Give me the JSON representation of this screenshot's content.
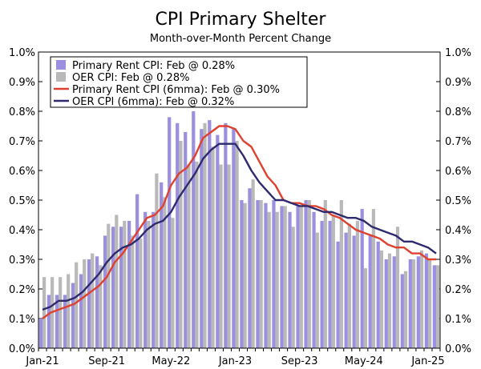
{
  "chart_data": {
    "type": "bar+line",
    "title": "CPI Primary Shelter",
    "subtitle": "Month-over-Month Percent Change",
    "xlabel": "",
    "ylabel": "",
    "ylim": [
      0.0,
      1.0
    ],
    "yticks": [
      "0.0%",
      "0.1%",
      "0.2%",
      "0.3%",
      "0.4%",
      "0.5%",
      "0.6%",
      "0.7%",
      "0.8%",
      "0.9%",
      "1.0%"
    ],
    "x_tick_labels": [
      "Jan-21",
      "Sep-21",
      "May-22",
      "Jan-23",
      "Sep-23",
      "May-24",
      "Jan-25"
    ],
    "grid": false,
    "legend_position": "top-left",
    "categories": [
      "2021-01",
      "2021-02",
      "2021-03",
      "2021-04",
      "2021-05",
      "2021-06",
      "2021-07",
      "2021-08",
      "2021-09",
      "2021-10",
      "2021-11",
      "2021-12",
      "2022-01",
      "2022-02",
      "2022-03",
      "2022-04",
      "2022-05",
      "2022-06",
      "2022-07",
      "2022-08",
      "2022-09",
      "2022-10",
      "2022-11",
      "2022-12",
      "2023-01",
      "2023-02",
      "2023-03",
      "2023-04",
      "2023-05",
      "2023-06",
      "2023-07",
      "2023-08",
      "2023-09",
      "2023-10",
      "2023-11",
      "2023-12",
      "2024-01",
      "2024-02",
      "2024-03",
      "2024-04",
      "2024-05",
      "2024-06",
      "2024-07",
      "2024-08",
      "2024-09",
      "2024-10",
      "2024-11",
      "2024-12",
      "2025-01",
      "2025-02"
    ],
    "series": [
      {
        "name": "Primary Rent CPI: Feb @ 0.28%",
        "kind": "bar",
        "color": "#9b8fe0",
        "values": [
          0.1,
          0.18,
          0.18,
          0.18,
          0.22,
          0.25,
          0.3,
          0.31,
          0.38,
          0.41,
          0.41,
          0.43,
          0.52,
          0.46,
          0.46,
          0.56,
          0.78,
          0.76,
          0.73,
          0.8,
          0.74,
          0.77,
          0.72,
          0.76,
          0.74,
          0.5,
          0.54,
          0.5,
          0.49,
          0.5,
          0.48,
          0.46,
          0.48,
          0.5,
          0.46,
          0.43,
          0.43,
          0.36,
          0.39,
          0.38,
          0.47,
          0.38,
          0.36,
          0.3,
          0.31,
          0.25,
          0.3,
          0.31,
          0.32,
          0.28
        ]
      },
      {
        "name": "OER CPI: Feb @ 0.28%",
        "kind": "bar",
        "color": "#b9b9b9",
        "values": [
          0.24,
          0.24,
          0.24,
          0.25,
          0.29,
          0.3,
          0.32,
          0.28,
          0.42,
          0.45,
          0.43,
          0.38,
          0.37,
          0.43,
          0.59,
          0.51,
          0.44,
          0.7,
          0.62,
          0.63,
          0.76,
          0.68,
          0.62,
          0.62,
          0.7,
          0.49,
          0.57,
          0.5,
          0.46,
          0.46,
          0.48,
          0.41,
          0.48,
          0.5,
          0.39,
          0.5,
          0.45,
          0.5,
          0.42,
          0.43,
          0.27,
          0.47,
          0.33,
          0.32,
          0.41,
          0.26,
          0.3,
          0.33,
          0.3,
          0.28
        ]
      },
      {
        "name": "Primary Rent CPI (6mma): Feb @ 0.30%",
        "kind": "line",
        "color": "#e0412f",
        "values": [
          0.1,
          0.12,
          0.13,
          0.14,
          0.15,
          0.17,
          0.19,
          0.21,
          0.24,
          0.29,
          0.32,
          0.36,
          0.4,
          0.44,
          0.45,
          0.48,
          0.55,
          0.59,
          0.61,
          0.65,
          0.71,
          0.73,
          0.75,
          0.75,
          0.74,
          0.7,
          0.68,
          0.63,
          0.58,
          0.55,
          0.5,
          0.49,
          0.49,
          0.48,
          0.48,
          0.47,
          0.45,
          0.44,
          0.42,
          0.4,
          0.39,
          0.38,
          0.37,
          0.35,
          0.34,
          0.34,
          0.32,
          0.32,
          0.3,
          0.3
        ]
      },
      {
        "name": "OER CPI (6mma): Feb @ 0.32%",
        "kind": "line",
        "color": "#2e2a6e",
        "values": [
          0.13,
          0.14,
          0.16,
          0.16,
          0.17,
          0.19,
          0.22,
          0.25,
          0.29,
          0.32,
          0.34,
          0.35,
          0.37,
          0.4,
          0.42,
          0.43,
          0.46,
          0.51,
          0.55,
          0.59,
          0.64,
          0.67,
          0.69,
          0.69,
          0.69,
          0.65,
          0.6,
          0.56,
          0.53,
          0.5,
          0.5,
          0.49,
          0.48,
          0.48,
          0.47,
          0.46,
          0.46,
          0.45,
          0.44,
          0.44,
          0.43,
          0.41,
          0.4,
          0.39,
          0.38,
          0.36,
          0.36,
          0.35,
          0.34,
          0.32
        ]
      }
    ]
  }
}
